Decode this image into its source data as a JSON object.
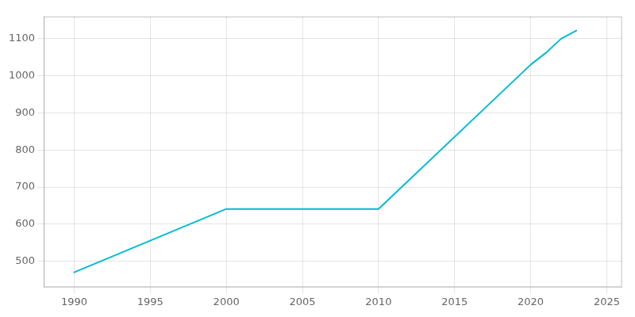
{
  "chart_data": {
    "type": "line",
    "x": [
      1990,
      2000,
      2010,
      2020,
      2021,
      2022,
      2023
    ],
    "values": [
      470,
      641,
      641,
      1030,
      1062,
      1100,
      1122
    ],
    "color": "#00bcd4",
    "xlim": [
      1988,
      2026
    ],
    "ylim": [
      430,
      1160
    ],
    "xticks": [
      1990,
      1995,
      2000,
      2005,
      2010,
      2015,
      2020,
      2025
    ],
    "yticks": [
      500,
      600,
      700,
      800,
      900,
      1000,
      1100
    ],
    "grid": true
  }
}
